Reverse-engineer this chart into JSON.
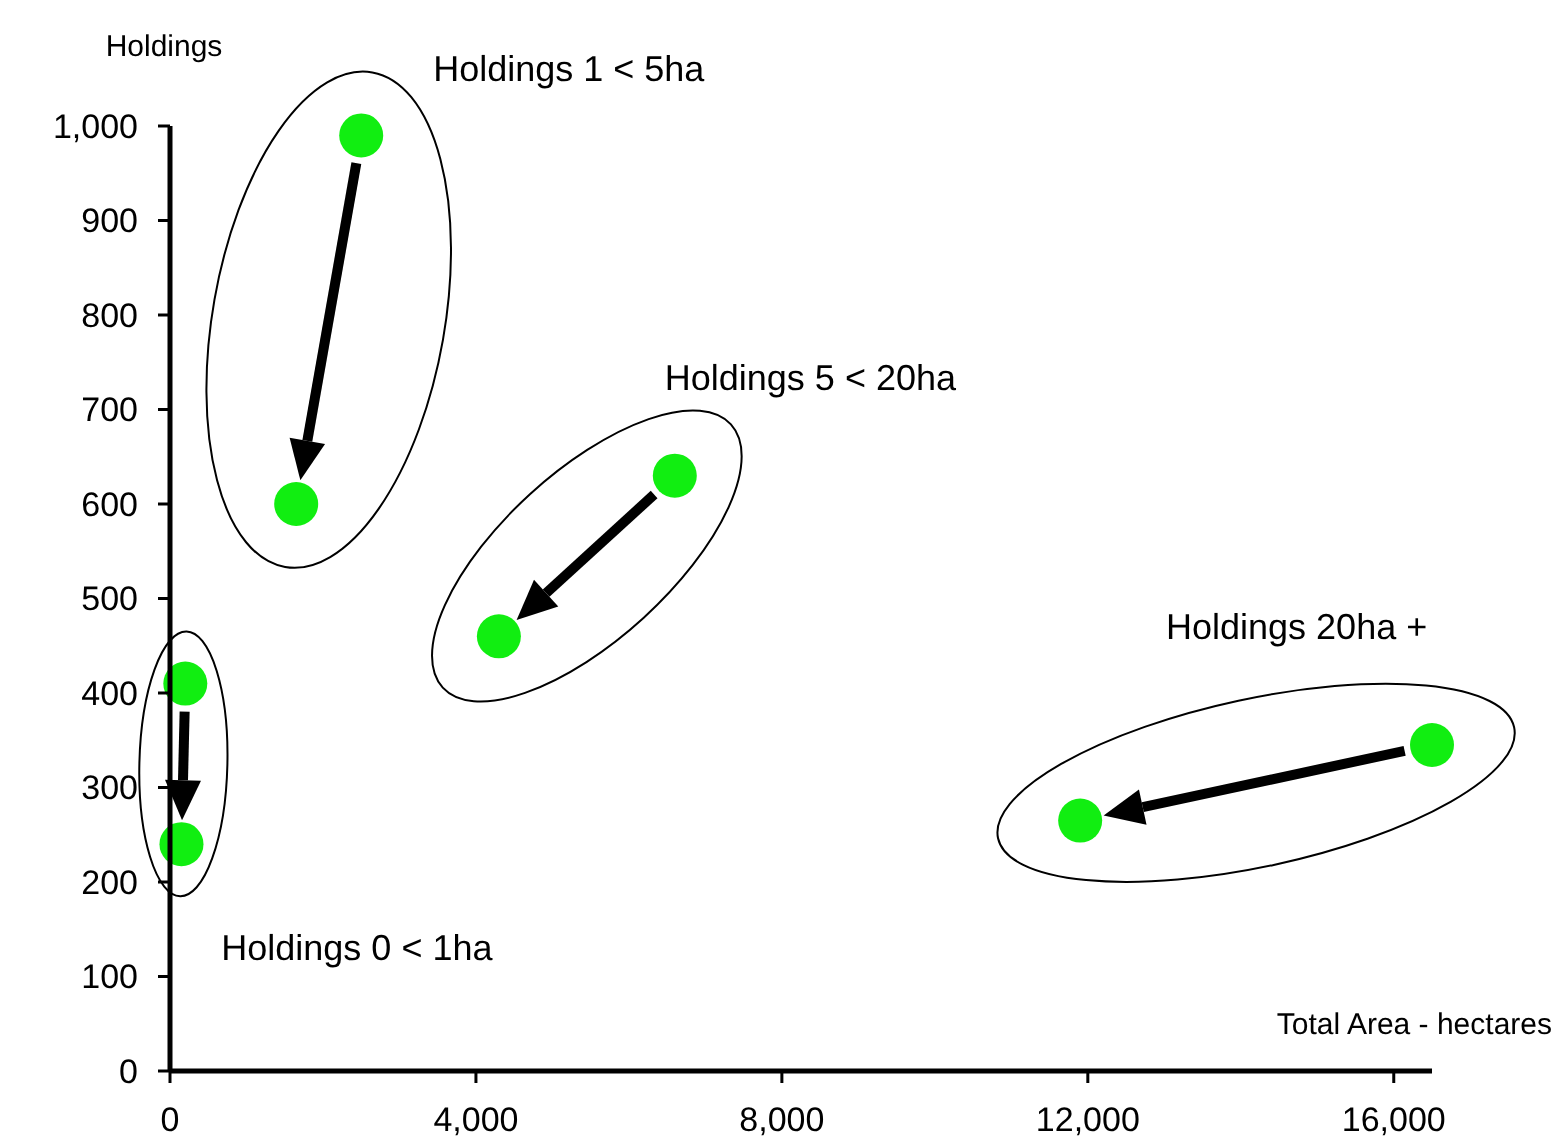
{
  "chart_data": {
    "type": "scatter",
    "xlabel": "Total Area - hectares",
    "ylabel": "Holdings",
    "marker": "circle",
    "xlim": [
      0,
      16500
    ],
    "xticks": [
      0,
      {
        "value": 4000,
        "label": "4,000"
      },
      {
        "value": 8000,
        "label": "8,000"
      },
      {
        "value": 12000,
        "label": "12,000"
      },
      {
        "value": 16000,
        "label": "16,000"
      }
    ],
    "ylim": [
      0,
      1000
    ],
    "yticks": [
      0,
      100,
      200,
      300,
      400,
      500,
      600,
      700,
      800,
      900,
      {
        "value": 1000,
        "label": "1,000"
      }
    ],
    "series": [
      {
        "name": "Holdings 1 < 5ha",
        "color": "#11ee11",
        "x": [
          2500,
          1650
        ],
        "values": [
          990,
          600
        ]
      },
      {
        "name": "Holdings 5 < 20ha",
        "color": "#11ee11",
        "x": [
          6600,
          4300
        ],
        "values": [
          630,
          460
        ]
      },
      {
        "name": "Holdings 20ha +",
        "color": "#11ee11",
        "x": [
          16500,
          11900
        ],
        "values": [
          345,
          265
        ]
      },
      {
        "name": "Holdings 0 < 1ha",
        "color": "#11ee11",
        "x": [
          200,
          150
        ],
        "values": [
          410,
          240
        ]
      }
    ]
  }
}
